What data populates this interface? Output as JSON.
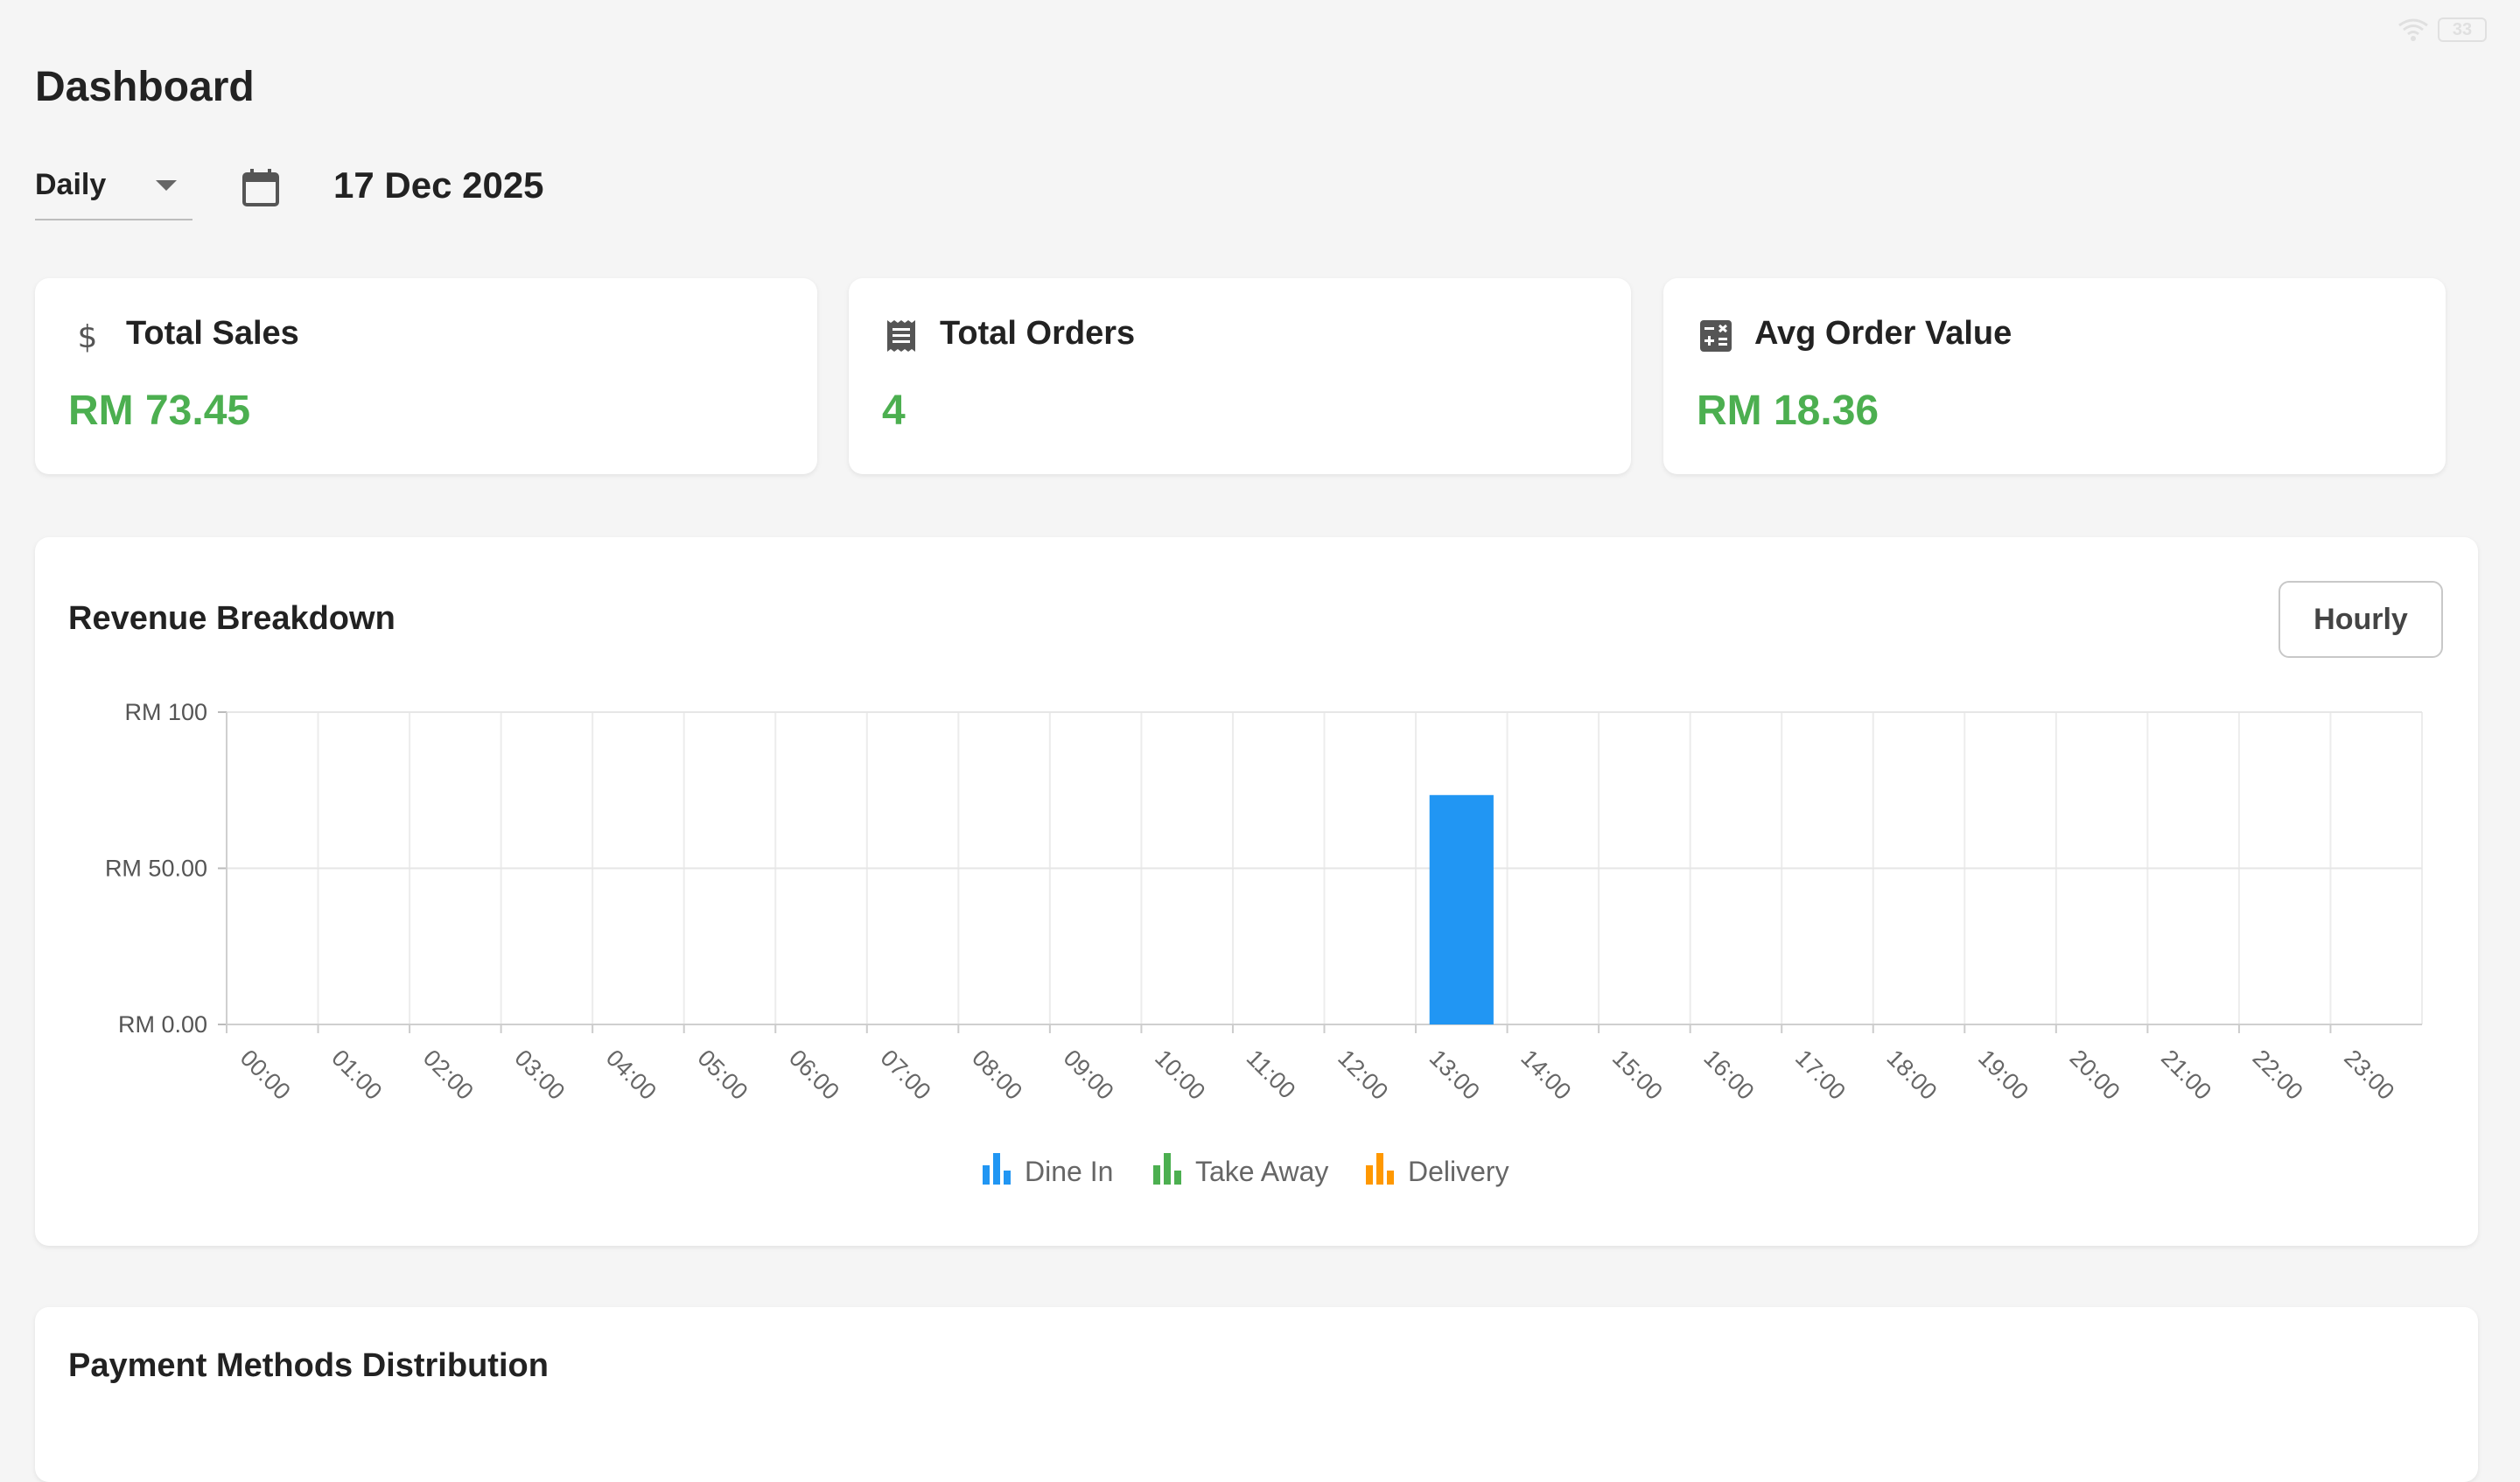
{
  "status_bar": {
    "battery": "33"
  },
  "page_title": "Dashboard",
  "filters": {
    "period": "Daily",
    "date": "17 Dec 2025"
  },
  "stats": [
    {
      "label": "Total Sales",
      "value": "RM 73.45",
      "icon": "dollar-icon"
    },
    {
      "label": "Total Orders",
      "value": "4",
      "icon": "receipt-icon"
    },
    {
      "label": "Avg Order Value",
      "value": "RM 18.36",
      "icon": "calculator-icon"
    }
  ],
  "revenue": {
    "title": "Revenue Breakdown",
    "toggle_label": "Hourly"
  },
  "payment": {
    "title": "Payment Methods Distribution"
  },
  "colors": {
    "accent_green": "#4caf50",
    "dine_in": "#2196f3",
    "take_away": "#4caf50",
    "delivery": "#ff9800"
  },
  "chart_data": {
    "type": "bar",
    "categories": [
      "00:00",
      "01:00",
      "02:00",
      "03:00",
      "04:00",
      "05:00",
      "06:00",
      "07:00",
      "08:00",
      "09:00",
      "10:00",
      "11:00",
      "12:00",
      "13:00",
      "14:00",
      "15:00",
      "16:00",
      "17:00",
      "18:00",
      "19:00",
      "20:00",
      "21:00",
      "22:00",
      "23:00"
    ],
    "series": [
      {
        "name": "Dine In",
        "color": "#2196f3",
        "values": [
          0,
          0,
          0,
          0,
          0,
          0,
          0,
          0,
          0,
          0,
          0,
          0,
          0,
          73.45,
          0,
          0,
          0,
          0,
          0,
          0,
          0,
          0,
          0,
          0
        ]
      },
      {
        "name": "Take Away",
        "color": "#4caf50",
        "values": [
          0,
          0,
          0,
          0,
          0,
          0,
          0,
          0,
          0,
          0,
          0,
          0,
          0,
          0,
          0,
          0,
          0,
          0,
          0,
          0,
          0,
          0,
          0,
          0
        ]
      },
      {
        "name": "Delivery",
        "color": "#ff9800",
        "values": [
          0,
          0,
          0,
          0,
          0,
          0,
          0,
          0,
          0,
          0,
          0,
          0,
          0,
          0,
          0,
          0,
          0,
          0,
          0,
          0,
          0,
          0,
          0,
          0
        ]
      }
    ],
    "yticks": [
      {
        "value": 0,
        "label": "RM 0.00"
      },
      {
        "value": 50,
        "label": "RM 50.00"
      },
      {
        "value": 100,
        "label": "RM 100"
      }
    ],
    "ylim": [
      0,
      100
    ],
    "grid": true,
    "legend": "bottom-center"
  }
}
